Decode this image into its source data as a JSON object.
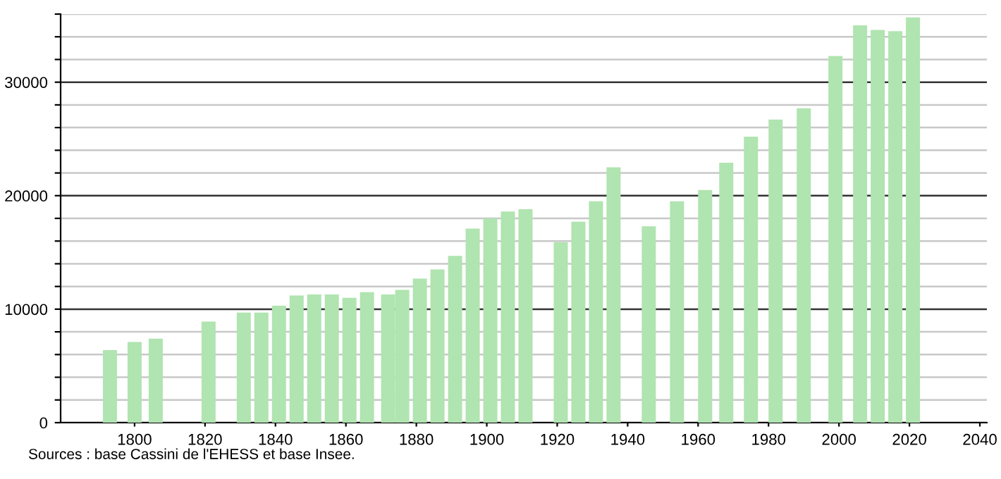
{
  "chart_data": {
    "type": "bar",
    "x": [
      1793,
      1800,
      1806,
      1821,
      1831,
      1836,
      1841,
      1846,
      1851,
      1856,
      1861,
      1866,
      1872,
      1876,
      1881,
      1886,
      1891,
      1896,
      1901,
      1906,
      1911,
      1921,
      1926,
      1931,
      1936,
      1946,
      1954,
      1962,
      1968,
      1975,
      1982,
      1990,
      1999,
      2006,
      2011,
      2016,
      2021
    ],
    "values": [
      6400,
      7100,
      7400,
      8900,
      9700,
      9700,
      10300,
      11200,
      11300,
      11300,
      11000,
      11500,
      11300,
      11700,
      12700,
      13500,
      14700,
      17100,
      18000,
      18600,
      18800,
      15900,
      17700,
      19500,
      22500,
      17300,
      19500,
      20500,
      22900,
      25200,
      26700,
      27700,
      32300,
      35000,
      34600,
      34500,
      35700
    ],
    "color": "#b0e4b0",
    "xlim": [
      1779,
      2042
    ],
    "xticks": [
      1800,
      1820,
      1840,
      1860,
      1880,
      1900,
      1920,
      1940,
      1960,
      1980,
      2000,
      2020,
      2040
    ],
    "ylim": [
      0,
      36000
    ],
    "yticks": [
      0,
      {
        "value": 2000,
        "label": null
      },
      {
        "value": 4000,
        "label": null
      },
      {
        "value": 6000,
        "label": null
      },
      {
        "value": 8000,
        "label": null
      },
      10000,
      {
        "value": 12000,
        "label": null
      },
      {
        "value": 14000,
        "label": null
      },
      {
        "value": 16000,
        "label": null
      },
      {
        "value": 18000,
        "label": null
      },
      20000,
      {
        "value": 22000,
        "label": null
      },
      {
        "value": 24000,
        "label": null
      },
      {
        "value": 26000,
        "label": null
      },
      {
        "value": 28000,
        "label": null
      },
      30000,
      {
        "value": 32000,
        "label": null
      },
      {
        "value": 34000,
        "label": null
      },
      {
        "value": 36000,
        "label": null
      }
    ],
    "grid": "y",
    "annotations": [
      "Sources : base Cassini de l'EHESS et base Insee."
    ]
  }
}
